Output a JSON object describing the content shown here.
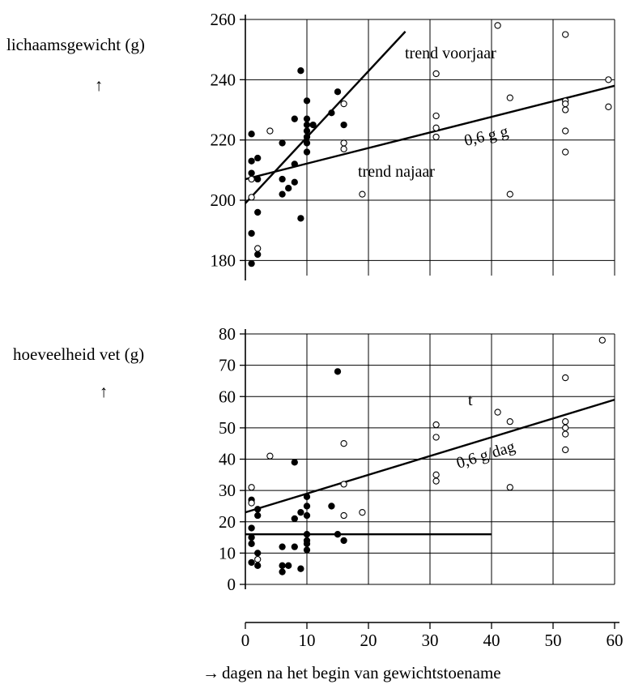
{
  "chart_data": [
    {
      "type": "scatter",
      "ylabel": "lichaamsgewicht (g)",
      "ylim": [
        175,
        260
      ],
      "yticks": [
        180,
        200,
        220,
        240,
        260
      ],
      "xlim": [
        0,
        60
      ],
      "xticks": [
        0,
        10,
        20,
        30,
        40,
        50,
        60
      ],
      "grid": true,
      "series": [
        {
          "marker": "filled",
          "points": [
            [
              1,
              222
            ],
            [
              1,
              213
            ],
            [
              1,
              209
            ],
            [
              1,
              189
            ],
            [
              1,
              179
            ],
            [
              2,
              214
            ],
            [
              2,
              207
            ],
            [
              2,
              196
            ],
            [
              2,
              182
            ],
            [
              6,
              219
            ],
            [
              6,
              207
            ],
            [
              6,
              202
            ],
            [
              7,
              204
            ],
            [
              8,
              227
            ],
            [
              8,
              212
            ],
            [
              8,
              206
            ],
            [
              9,
              243
            ],
            [
              9,
              194
            ],
            [
              10,
              233
            ],
            [
              10,
              227
            ],
            [
              10,
              225
            ],
            [
              10,
              223
            ],
            [
              10,
              221
            ],
            [
              10,
              219
            ],
            [
              10,
              216
            ],
            [
              11,
              225
            ],
            [
              14,
              229
            ],
            [
              15,
              236
            ],
            [
              16,
              225
            ]
          ]
        },
        {
          "marker": "open",
          "points": [
            [
              1,
              207
            ],
            [
              1,
              201
            ],
            [
              2,
              184
            ],
            [
              4,
              223
            ],
            [
              16,
              232
            ],
            [
              16,
              219
            ],
            [
              16,
              217
            ],
            [
              19,
              202
            ],
            [
              31,
              242
            ],
            [
              31,
              228
            ],
            [
              31,
              224
            ],
            [
              31,
              221
            ],
            [
              41,
              258
            ],
            [
              43,
              234
            ],
            [
              43,
              202
            ],
            [
              52,
              255
            ],
            [
              52,
              233
            ],
            [
              52,
              232
            ],
            [
              52,
              230
            ],
            [
              52,
              223
            ],
            [
              52,
              216
            ],
            [
              59,
              240
            ],
            [
              59,
              231
            ]
          ]
        }
      ],
      "trend_lines": [
        {
          "label": "trend voorjaar",
          "from": [
            0,
            199
          ],
          "to": [
            26,
            256
          ]
        },
        {
          "label": "trend najaar",
          "from": [
            0,
            207
          ],
          "to": [
            60,
            238
          ]
        }
      ],
      "annotation_text": "0,6 g g"
    },
    {
      "type": "scatter",
      "ylabel": "hoeveelheid vet (g)",
      "ylim": [
        0,
        80
      ],
      "yticks": [
        0,
        10,
        20,
        30,
        40,
        50,
        60,
        70,
        80
      ],
      "xlim": [
        0,
        60
      ],
      "xticks": [
        0,
        10,
        20,
        30,
        40,
        50,
        60
      ],
      "xlabel": "dagen na het begin van gewichtstoename",
      "grid": true,
      "series": [
        {
          "marker": "filled",
          "points": [
            [
              1,
              27
            ],
            [
              1,
              18
            ],
            [
              1,
              15
            ],
            [
              1,
              13
            ],
            [
              1,
              7
            ],
            [
              2,
              24
            ],
            [
              2,
              22
            ],
            [
              2,
              10
            ],
            [
              2,
              6
            ],
            [
              6,
              12
            ],
            [
              6,
              6
            ],
            [
              6,
              4
            ],
            [
              7,
              6
            ],
            [
              8,
              39
            ],
            [
              8,
              21
            ],
            [
              8,
              12
            ],
            [
              9,
              23
            ],
            [
              9,
              5
            ],
            [
              10,
              28
            ],
            [
              10,
              25
            ],
            [
              10,
              22
            ],
            [
              10,
              16
            ],
            [
              10,
              14
            ],
            [
              10,
              13
            ],
            [
              10,
              11
            ],
            [
              14,
              25
            ],
            [
              15,
              68
            ],
            [
              15,
              16
            ],
            [
              16,
              14
            ]
          ]
        },
        {
          "marker": "open",
          "points": [
            [
              1,
              31
            ],
            [
              1,
              26
            ],
            [
              2,
              8
            ],
            [
              4,
              41
            ],
            [
              16,
              45
            ],
            [
              16,
              32
            ],
            [
              16,
              22
            ],
            [
              19,
              23
            ],
            [
              31,
              51
            ],
            [
              31,
              47
            ],
            [
              31,
              35
            ],
            [
              31,
              33
            ],
            [
              41,
              55
            ],
            [
              43,
              52
            ],
            [
              43,
              31
            ],
            [
              52,
              66
            ],
            [
              52,
              52
            ],
            [
              52,
              50
            ],
            [
              52,
              48
            ],
            [
              52,
              43
            ],
            [
              58,
              78
            ]
          ]
        }
      ],
      "trend_lines": [
        {
          "label": "",
          "from": [
            0,
            23
          ],
          "to": [
            60,
            59
          ]
        },
        {
          "label": "",
          "from": [
            0,
            16
          ],
          "to": [
            40,
            16
          ]
        }
      ],
      "annotation_text": "0,6 g/dag",
      "annotation_fragment": "t"
    }
  ],
  "top_labels": {
    "trend_spring": "trend voorjaar",
    "trend_autumn": "trend najaar",
    "slope_note": "0,6 g g"
  },
  "bottom_labels": {
    "slope_note": "0,6 g/dag",
    "fragment": "t"
  },
  "axis_arrow_up": "↑",
  "axis_arrow_right": "→",
  "x_axis_caption": "dagen na het begin van gewichtstoename"
}
